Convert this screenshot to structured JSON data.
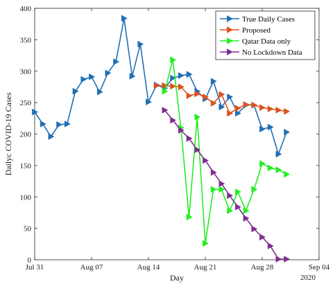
{
  "chart_data": {
    "type": "line",
    "xlabel": "Day",
    "ylabel": "Dailyc COVID-19 Cases",
    "x_axis_kind": "date",
    "xlim": [
      "2020-07-31",
      "2020-09-04"
    ],
    "ylim": [
      0,
      400
    ],
    "x_ticks": [
      "2020-07-31",
      "2020-08-07",
      "2020-08-14",
      "2020-08-21",
      "2020-08-28",
      "2020-09-04"
    ],
    "x_tick_labels": [
      "Jul 31",
      "Aug 07",
      "Aug 14",
      "Aug 21",
      "Aug 28",
      "Sep 04"
    ],
    "x_secondary_label": "2020",
    "y_ticks": [
      0,
      50,
      100,
      150,
      200,
      250,
      300,
      350,
      400
    ],
    "y_tick_labels": [
      "0",
      "50",
      "100",
      "150",
      "200",
      "250",
      "300",
      "350",
      "400"
    ],
    "grid": false,
    "legend_position": "top-right",
    "series": [
      {
        "name": "True Daily Cases",
        "color": "#1f6fb5",
        "x": [
          "2020-07-31",
          "2020-08-01",
          "2020-08-02",
          "2020-08-03",
          "2020-08-04",
          "2020-08-05",
          "2020-08-06",
          "2020-08-07",
          "2020-08-08",
          "2020-08-09",
          "2020-08-10",
          "2020-08-11",
          "2020-08-12",
          "2020-08-13",
          "2020-08-14",
          "2020-08-15",
          "2020-08-16",
          "2020-08-17",
          "2020-08-18",
          "2020-08-19",
          "2020-08-20",
          "2020-08-21",
          "2020-08-22",
          "2020-08-23",
          "2020-08-24",
          "2020-08-25",
          "2020-08-26",
          "2020-08-27",
          "2020-08-28",
          "2020-08-29",
          "2020-08-30",
          "2020-08-31"
        ],
        "y": [
          235,
          216,
          196,
          215,
          216,
          268,
          287,
          291,
          267,
          297,
          315,
          384,
          292,
          343,
          251,
          278,
          273,
          289,
          293,
          295,
          268,
          256,
          284,
          243,
          259,
          233,
          246,
          246,
          208,
          211,
          168,
          203
        ]
      },
      {
        "name": "Proposed",
        "color": "#d9531e",
        "x": [
          "2020-08-15",
          "2020-08-16",
          "2020-08-17",
          "2020-08-18",
          "2020-08-19",
          "2020-08-20",
          "2020-08-21",
          "2020-08-22",
          "2020-08-23",
          "2020-08-24",
          "2020-08-25",
          "2020-08-26",
          "2020-08-27",
          "2020-08-28",
          "2020-08-29",
          "2020-08-30",
          "2020-08-31"
        ],
        "y": [
          277,
          277,
          276,
          275,
          261,
          264,
          259,
          249,
          263,
          233,
          241,
          247,
          246,
          242,
          240,
          238,
          236
        ]
      },
      {
        "name": "Qatar Data only",
        "color": "#22ee22",
        "x": [
          "2020-08-16",
          "2020-08-17",
          "2020-08-18",
          "2020-08-19",
          "2020-08-20",
          "2020-08-21",
          "2020-08-22",
          "2020-08-23",
          "2020-08-24",
          "2020-08-25",
          "2020-08-26",
          "2020-08-27",
          "2020-08-28",
          "2020-08-29",
          "2020-08-30",
          "2020-08-31"
        ],
        "y": [
          268,
          318,
          210,
          68,
          227,
          26,
          112,
          112,
          78,
          108,
          78,
          112,
          153,
          146,
          143,
          136
        ]
      },
      {
        "name": "No Lockdown Data",
        "color": "#7e2f8e",
        "x": [
          "2020-08-16",
          "2020-08-17",
          "2020-08-18",
          "2020-08-19",
          "2020-08-20",
          "2020-08-21",
          "2020-08-22",
          "2020-08-23",
          "2020-08-24",
          "2020-08-25",
          "2020-08-26",
          "2020-08-27",
          "2020-08-28",
          "2020-08-29",
          "2020-08-30",
          "2020-08-31"
        ],
        "y": [
          238,
          222,
          206,
          193,
          175,
          158,
          139,
          121,
          102,
          84,
          66,
          49,
          36,
          22,
          1,
          1
        ]
      }
    ]
  }
}
